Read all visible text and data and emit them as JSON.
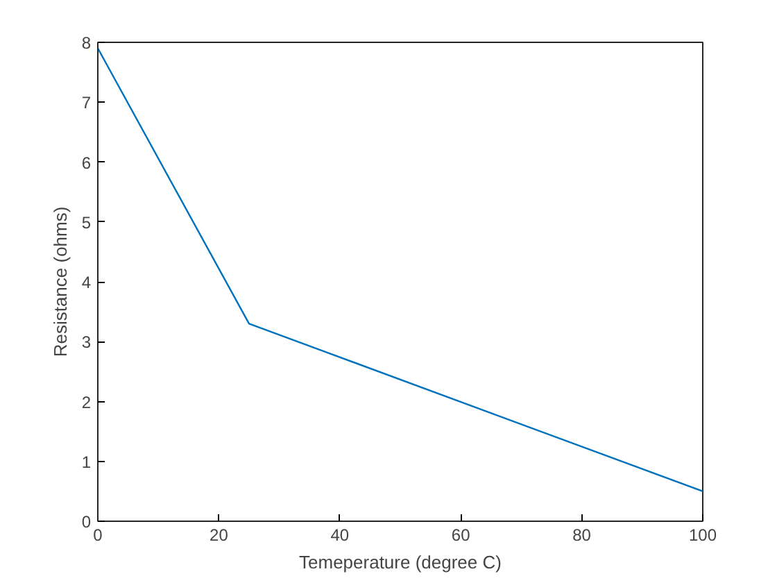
{
  "chart_data": {
    "type": "line",
    "xlabel": "Temeperature (degree C)",
    "ylabel": "Resistance (ohms)",
    "x": [
      0,
      25,
      100
    ],
    "series": [
      {
        "color": "#0072bd",
        "values": [
          7.9,
          3.3,
          0.5
        ]
      }
    ],
    "xlim": [
      0,
      100
    ],
    "xticks": [
      0,
      20,
      40,
      60,
      80,
      100
    ],
    "ylim": [
      0,
      8
    ],
    "yticks": [
      0,
      1,
      2,
      3,
      4,
      5,
      6,
      7,
      8
    ],
    "grid": false
  }
}
